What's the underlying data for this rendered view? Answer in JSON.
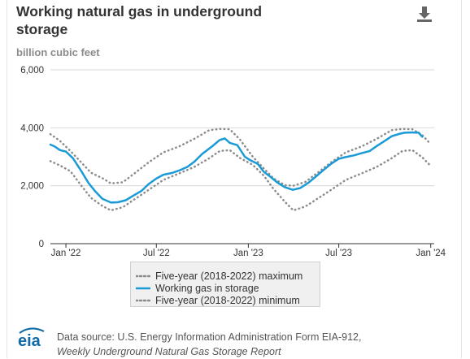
{
  "header": {
    "title": "Working natural gas in underground storage",
    "unit": "billion cubic feet",
    "download_icon": "download-icon"
  },
  "colors": {
    "storage_line": "#1a9ad6",
    "bounds_line": "#8c8c8c",
    "gridline": "#d9d9d9",
    "eia_logo": "#0f6aa8"
  },
  "legend": {
    "max_label": "Five-year (2018-2022) maximum",
    "storage_label": "Working gas in storage",
    "min_label": "Five-year (2018-2022) minimum"
  },
  "footer": {
    "logo_text": "eia",
    "source_line1": "Data source: U.S. Energy Information Administration Form EIA-912,",
    "source_line2": "Weekly Underground Natural Gas Storage Report"
  },
  "chart_data": {
    "type": "line",
    "title": "Working natural gas in underground storage",
    "ylabel": "billion cubic feet",
    "xlabel": "",
    "ylim": [
      0,
      6000
    ],
    "yticks": [
      0,
      2000,
      4000,
      6000
    ],
    "ytick_labels": [
      "0",
      "2,000",
      "4,000",
      "6,000"
    ],
    "xlim": [
      "2021-12-01",
      "2024-01-08"
    ],
    "xticks": [
      "2022-01-01",
      "2022-07-01",
      "2023-01-01",
      "2023-07-01",
      "2024-01-01"
    ],
    "xtick_labels": [
      "Jan '22",
      "Jul '22",
      "Jan '23",
      "Jul '23",
      "Jan '24"
    ],
    "grid": "horizontal",
    "legend_position": "bottom-center",
    "series": [
      {
        "name": "Five-year (2018-2022) maximum",
        "style": "dotted",
        "x": [
          "2021-12-01",
          "2021-12-20",
          "2022-01-10",
          "2022-02-01",
          "2022-02-20",
          "2022-03-15",
          "2022-04-01",
          "2022-04-25",
          "2022-05-20",
          "2022-06-15",
          "2022-07-15",
          "2022-08-15",
          "2022-09-15",
          "2022-10-15",
          "2022-11-05",
          "2022-11-25",
          "2022-12-15",
          "2023-01-10",
          "2023-02-01",
          "2023-02-20",
          "2023-03-15",
          "2023-04-01",
          "2023-04-25",
          "2023-05-20",
          "2023-06-15",
          "2023-07-15",
          "2023-08-15",
          "2023-09-15",
          "2023-10-15",
          "2023-11-05",
          "2023-11-25",
          "2023-12-15",
          "2023-12-31"
        ],
        "values": [
          3780,
          3550,
          3200,
          2800,
          2450,
          2260,
          2080,
          2120,
          2450,
          2800,
          3150,
          3350,
          3620,
          3920,
          3960,
          3950,
          3600,
          3000,
          2600,
          2260,
          2020,
          2000,
          2130,
          2450,
          2800,
          3150,
          3350,
          3620,
          3920,
          3960,
          3950,
          3750,
          3450
        ]
      },
      {
        "name": "Working gas in storage",
        "style": "solid",
        "x": [
          "2021-12-01",
          "2021-12-10",
          "2021-12-20",
          "2022-01-01",
          "2022-01-15",
          "2022-02-01",
          "2022-02-15",
          "2022-03-01",
          "2022-03-15",
          "2022-04-01",
          "2022-04-15",
          "2022-05-01",
          "2022-05-15",
          "2022-06-01",
          "2022-06-15",
          "2022-07-01",
          "2022-07-15",
          "2022-08-01",
          "2022-08-15",
          "2022-09-01",
          "2022-09-15",
          "2022-10-01",
          "2022-10-20",
          "2022-11-05",
          "2022-11-15",
          "2022-11-25",
          "2022-12-10",
          "2022-12-25",
          "2023-01-05",
          "2023-01-20",
          "2023-02-01",
          "2023-02-15",
          "2023-03-01",
          "2023-03-15",
          "2023-03-31",
          "2023-04-15",
          "2023-05-01",
          "2023-05-15",
          "2023-06-01",
          "2023-06-15",
          "2023-07-01",
          "2023-07-15",
          "2023-08-01",
          "2023-08-15",
          "2023-09-01",
          "2023-09-15",
          "2023-10-01",
          "2023-10-15",
          "2023-11-01",
          "2023-11-10",
          "2023-11-24",
          "2023-12-08",
          "2023-12-15"
        ],
        "values": [
          3420,
          3350,
          3230,
          3180,
          2950,
          2500,
          2100,
          1800,
          1550,
          1420,
          1430,
          1500,
          1650,
          1820,
          2050,
          2250,
          2380,
          2440,
          2520,
          2650,
          2830,
          3100,
          3350,
          3580,
          3630,
          3480,
          3400,
          3000,
          2880,
          2750,
          2480,
          2300,
          2100,
          1950,
          1860,
          1920,
          2100,
          2300,
          2550,
          2750,
          2930,
          2990,
          3050,
          3120,
          3200,
          3370,
          3550,
          3710,
          3800,
          3830,
          3840,
          3830,
          3690
        ]
      },
      {
        "name": "Five-year (2018-2022) minimum",
        "style": "dotted",
        "x": [
          "2021-12-01",
          "2021-12-20",
          "2022-01-10",
          "2022-02-01",
          "2022-02-20",
          "2022-03-15",
          "2022-04-01",
          "2022-04-25",
          "2022-05-20",
          "2022-06-15",
          "2022-07-15",
          "2022-08-15",
          "2022-09-15",
          "2022-10-15",
          "2022-11-05",
          "2022-11-25",
          "2022-12-15",
          "2023-01-10",
          "2023-02-01",
          "2023-02-20",
          "2023-03-15",
          "2023-04-01",
          "2023-04-25",
          "2023-05-20",
          "2023-06-15",
          "2023-07-15",
          "2023-08-15",
          "2023-09-15",
          "2023-10-15",
          "2023-11-05",
          "2023-11-25",
          "2023-12-15",
          "2023-12-31"
        ],
        "values": [
          2850,
          2700,
          2500,
          2000,
          1580,
          1300,
          1150,
          1260,
          1550,
          1850,
          2200,
          2420,
          2650,
          2950,
          3200,
          3230,
          2960,
          2720,
          2350,
          1900,
          1450,
          1150,
          1280,
          1560,
          1850,
          2200,
          2420,
          2650,
          2950,
          3200,
          3230,
          2980,
          2700
        ]
      }
    ]
  }
}
